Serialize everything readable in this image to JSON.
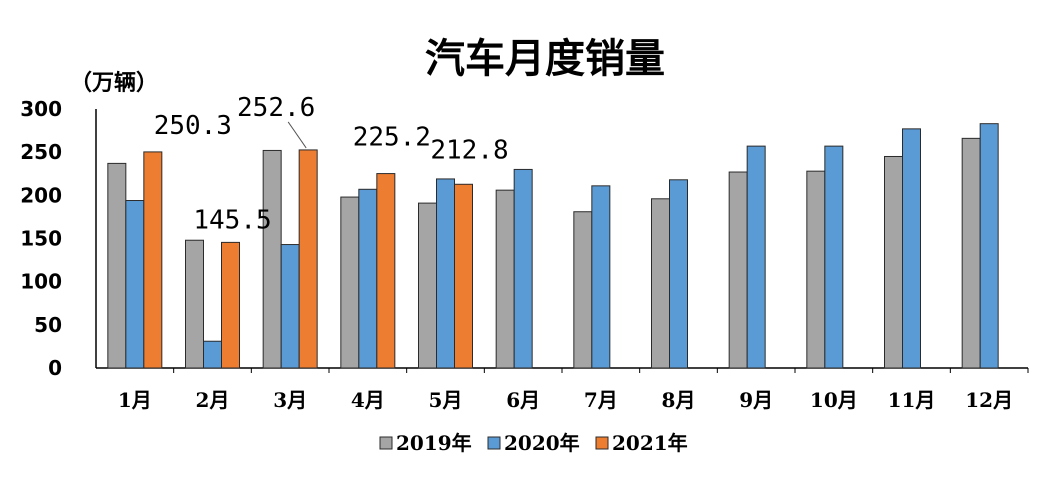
{
  "chart_data": {
    "type": "bar",
    "title": "汽车月度销量",
    "ylabel": "（万辆）",
    "xlabel": "",
    "ylim": [
      0,
      300
    ],
    "yticks": [
      "0",
      "50",
      "100",
      "150",
      "200",
      "250",
      "300"
    ],
    "categories": [
      "1月",
      "2月",
      "3月",
      "4月",
      "5月",
      "6月",
      "7月",
      "8月",
      "9月",
      "10月",
      "11月",
      "12月"
    ],
    "series": [
      {
        "name": "2019年",
        "color": "#a5a5a5",
        "values": [
          237,
          148,
          252,
          198,
          191,
          206,
          181,
          196,
          227,
          228,
          245,
          266
        ]
      },
      {
        "name": "2020年",
        "color": "#5b9bd5",
        "values": [
          194,
          31,
          143,
          207,
          219,
          230,
          211,
          218,
          257,
          257,
          277,
          283
        ]
      },
      {
        "name": "2021年",
        "color": "#ed7d31",
        "values": [
          250.3,
          145.5,
          252.6,
          225.2,
          212.8,
          null,
          null,
          null,
          null,
          null,
          null,
          null
        ]
      }
    ],
    "data_labels": [
      "250.3",
      "145.5",
      "252.6",
      "225.2",
      "212.8"
    ],
    "grid": false,
    "legend_position": "bottom"
  }
}
